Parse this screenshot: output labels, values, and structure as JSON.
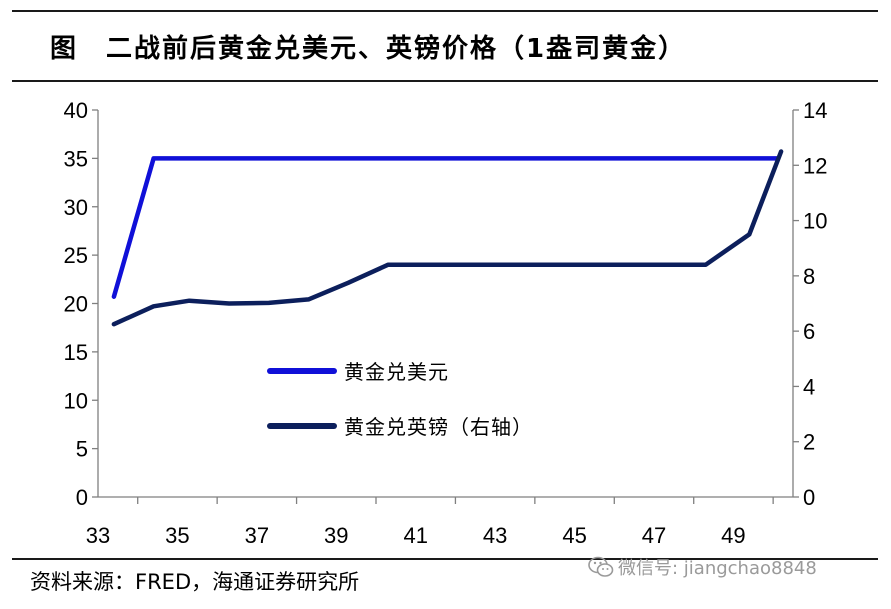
{
  "title": "图　二战前后黄金兑美元、英镑价格（1盎司黄金）",
  "source": "资料来源：FRED，海通证券研究所",
  "watermark": {
    "icon": "wechat-icon",
    "text": "微信号: jiangchao8848"
  },
  "chart_data": {
    "type": "line",
    "x_ticks": [
      "33",
      "35",
      "37",
      "39",
      "41",
      "43",
      "45",
      "47",
      "49"
    ],
    "xlim": [
      33,
      50.5
    ],
    "left_axis": {
      "ylim": [
        0,
        40
      ],
      "ticks": [
        "0",
        "5",
        "10",
        "15",
        "20",
        "25",
        "30",
        "35",
        "40"
      ]
    },
    "right_axis": {
      "ylim": [
        0,
        14
      ],
      "ticks": [
        "0",
        "2",
        "4",
        "6",
        "8",
        "10",
        "12",
        "14"
      ]
    },
    "grid": false,
    "legend_position": "center-left",
    "series": [
      {
        "name": "黄金兑美元",
        "axis": "left",
        "color": "#1010d8",
        "x": [
          33.4,
          34.4,
          35,
          36,
          37,
          38,
          39,
          40,
          41,
          42,
          43,
          44,
          45,
          46,
          47,
          48,
          49,
          50.1
        ],
        "y": [
          20.7,
          35,
          35,
          35,
          35,
          35,
          35,
          35,
          35,
          35,
          35,
          35,
          35,
          35,
          35,
          35,
          35,
          35
        ]
      },
      {
        "name": "黄金兑英镑（右轴）",
        "axis": "right",
        "color": "#0c1f5c",
        "x": [
          33.4,
          34.4,
          35.3,
          36.3,
          37.3,
          38.3,
          39.3,
          40.3,
          41,
          42,
          43,
          44,
          45,
          46,
          47,
          48.3,
          49.4,
          50.2
        ],
        "y": [
          6.25,
          6.9,
          7.1,
          7.0,
          7.02,
          7.15,
          7.75,
          8.4,
          8.4,
          8.4,
          8.4,
          8.4,
          8.4,
          8.4,
          8.4,
          8.4,
          9.5,
          12.5
        ]
      }
    ]
  }
}
